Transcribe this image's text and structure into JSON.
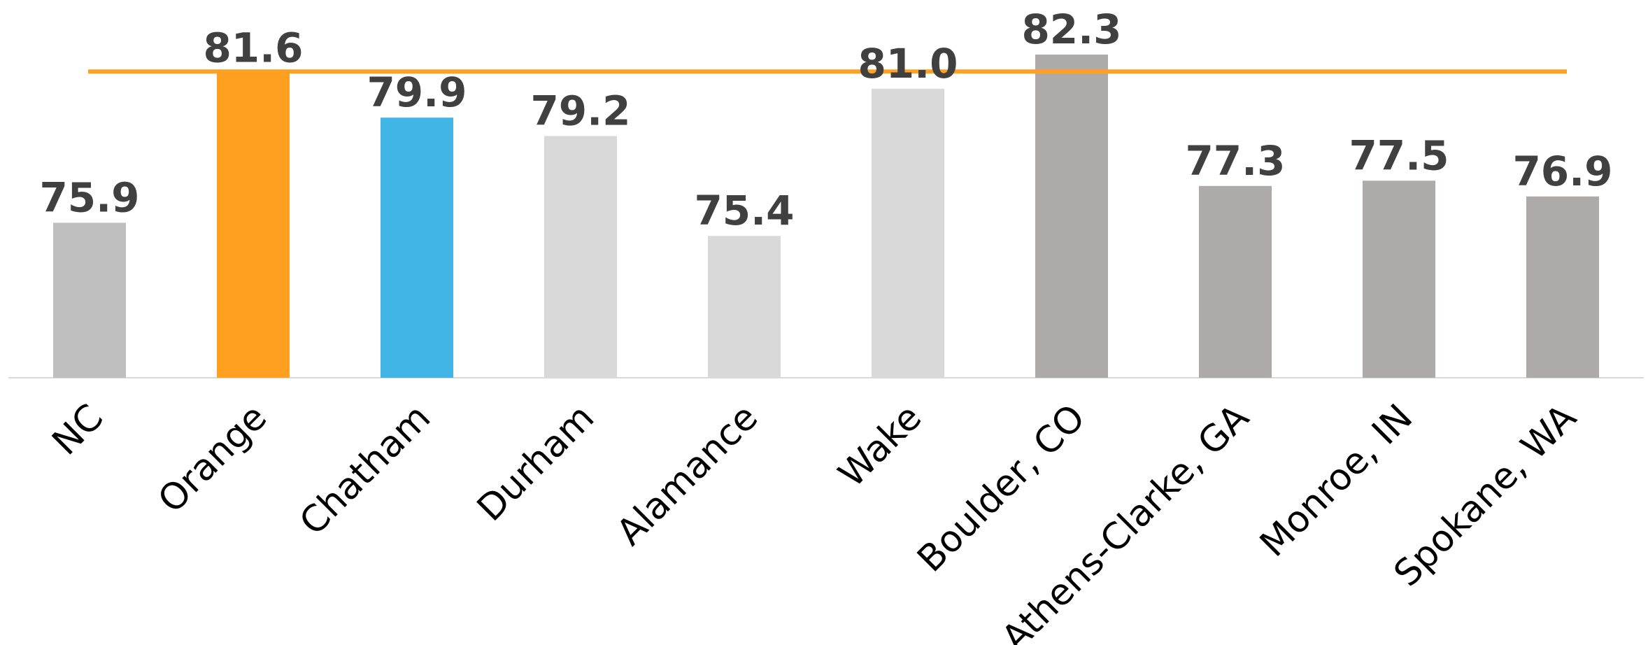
{
  "chart_data": {
    "type": "bar",
    "categories": [
      "NC",
      "Orange",
      "Chatham",
      "Durham",
      "Alamance",
      "Wake",
      "Boulder, CO",
      "Athens-Clarke, GA",
      "Monroe, IN",
      "Spokane, WA"
    ],
    "values": [
      75.9,
      81.6,
      79.9,
      79.2,
      75.4,
      81.0,
      82.3,
      77.3,
      77.5,
      76.9
    ],
    "value_labels": [
      "75.9",
      "81.6",
      "79.9",
      "79.2",
      "75.4",
      "81.0",
      "82.3",
      "77.3",
      "77.5",
      "76.9"
    ],
    "bar_colors": [
      "#bfbfbf",
      "#ffa020",
      "#41b6e6",
      "#d9d9d9",
      "#d9d9d9",
      "#d9d9d9",
      "#aeaaaa",
      "#aeaaaa",
      "#aeaaaa",
      "#aeaaaa"
    ],
    "reference_line": {
      "value": 81.6,
      "color": "#ffa020"
    },
    "ylim": [
      70,
      82.3
    ],
    "title": "",
    "xlabel": "",
    "ylabel": "",
    "grid": false,
    "legend": "none"
  }
}
